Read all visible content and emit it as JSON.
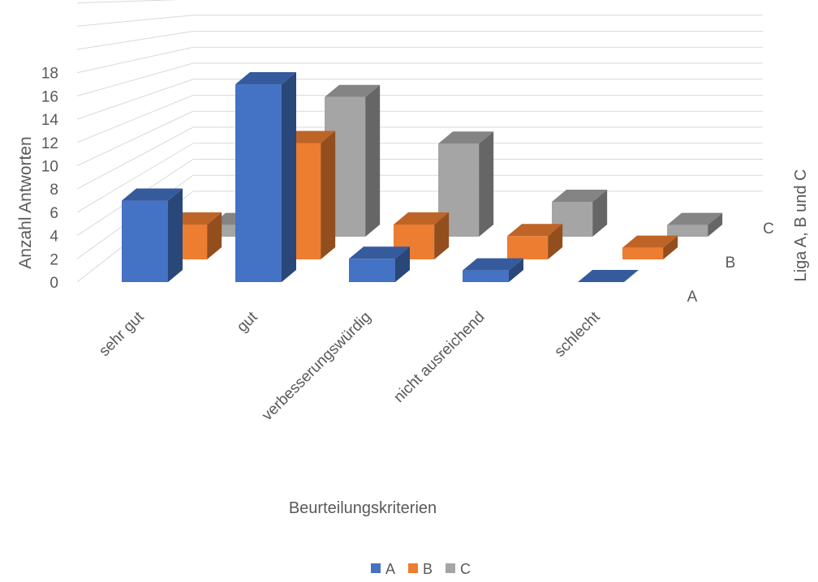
{
  "chart_data": {
    "type": "bar",
    "subtype": "3d-column",
    "categories": [
      "sehr gut",
      "gut",
      "verbesserungswürdig",
      "nicht ausreichend",
      "schlecht"
    ],
    "series": [
      {
        "name": "A",
        "color": "#4472C4",
        "values": [
          7,
          17,
          2,
          1,
          0
        ]
      },
      {
        "name": "B",
        "color": "#ED7D31",
        "values": [
          3,
          10,
          3,
          2,
          1
        ]
      },
      {
        "name": "C",
        "color": "#A5A5A5",
        "values": [
          1,
          12,
          8,
          3,
          1
        ]
      }
    ],
    "ylabel": "Anzahl Antworten",
    "xlabel": "Beurteilungskriterien",
    "zlabel": "Liga A, B und C",
    "y_ticks": [
      0,
      2,
      4,
      6,
      8,
      10,
      12,
      14,
      16,
      18
    ],
    "ylim": [
      0,
      18
    ],
    "grid": true,
    "legend_position": "bottom"
  }
}
